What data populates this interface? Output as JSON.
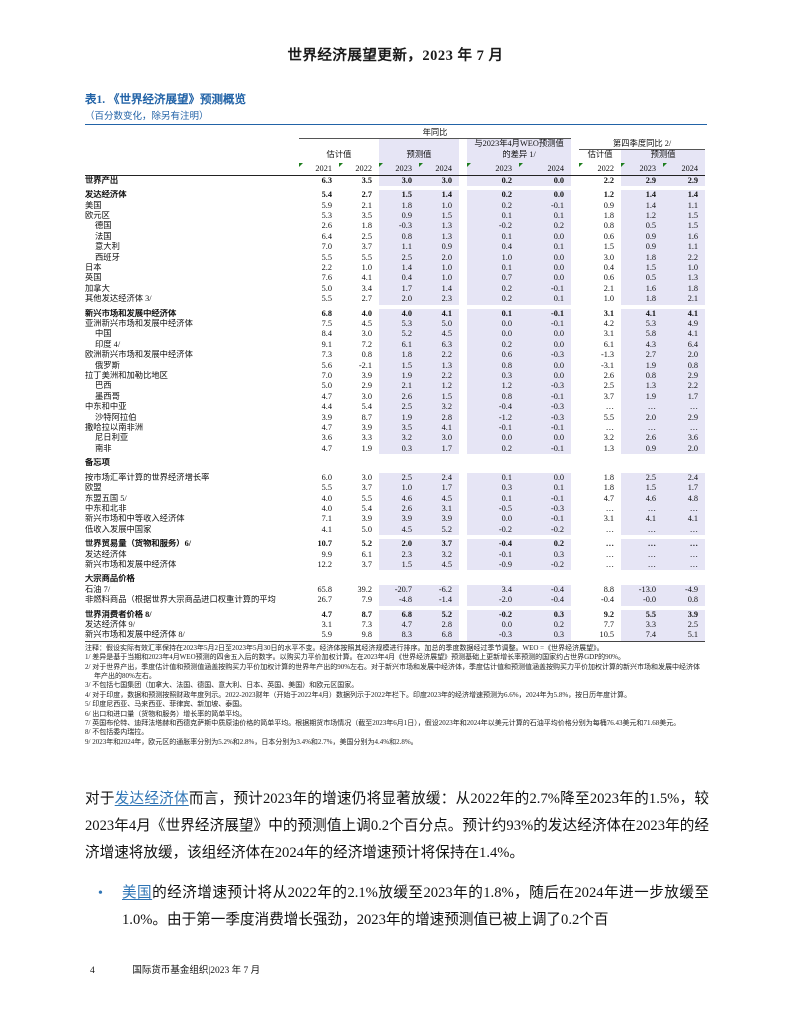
{
  "page": {
    "header_title": "世界经济展望更新，2023 年 7 月",
    "footer_page_number": "4",
    "footer_text": "国际货币基金组织|2023 年 7 月"
  },
  "colors": {
    "accent_blue": "#2263A7",
    "link_blue": "#2E74B5",
    "band_lavender": "#E6E5F5",
    "flag_green": "#1E7E1E"
  },
  "table": {
    "title": "表1. 《世界经济展望》预测概览",
    "subtitle": "（百分数变化，除另有注明）",
    "header": {
      "yoy": "年同比",
      "q4": "第四季度同比 2/",
      "estimate": "估计值",
      "forecast": "预测值",
      "diff_line1": "与2023年4月WEO预测值",
      "diff_line2": "的差异 1/",
      "years_annual": [
        "2021",
        "2022",
        "2023",
        "2024"
      ],
      "years_diff": [
        "2023",
        "2024"
      ],
      "years_q4": [
        "2022",
        "2023",
        "2024"
      ]
    },
    "rows": [
      {
        "label": "世界产出",
        "indent": 0,
        "bold": true,
        "gap_before": false,
        "values": [
          "6.3",
          "3.5",
          "3.0",
          "3.0",
          "0.2",
          "0.0",
          "2.2",
          "2.9",
          "2.9"
        ]
      },
      {
        "label": "发达经济体",
        "indent": 0,
        "bold": true,
        "gap_before": true,
        "values": [
          "5.4",
          "2.7",
          "1.5",
          "1.4",
          "0.2",
          "0.0",
          "1.2",
          "1.4",
          "1.4"
        ]
      },
      {
        "label": "美国",
        "indent": 0,
        "bold": false,
        "gap_before": false,
        "values": [
          "5.9",
          "2.1",
          "1.8",
          "1.0",
          "0.2",
          "-0.1",
          "0.9",
          "1.4",
          "1.1"
        ]
      },
      {
        "label": "欧元区",
        "indent": 0,
        "bold": false,
        "gap_before": false,
        "values": [
          "5.3",
          "3.5",
          "0.9",
          "1.5",
          "0.1",
          "0.1",
          "1.8",
          "1.2",
          "1.5"
        ]
      },
      {
        "label": "德国",
        "indent": 1,
        "bold": false,
        "gap_before": false,
        "values": [
          "2.6",
          "1.8",
          "-0.3",
          "1.3",
          "-0.2",
          "0.2",
          "0.8",
          "0.5",
          "1.5"
        ]
      },
      {
        "label": "法国",
        "indent": 1,
        "bold": false,
        "gap_before": false,
        "values": [
          "6.4",
          "2.5",
          "0.8",
          "1.3",
          "0.1",
          "0.0",
          "0.6",
          "0.9",
          "1.6"
        ]
      },
      {
        "label": "意大利",
        "indent": 1,
        "bold": false,
        "gap_before": false,
        "values": [
          "7.0",
          "3.7",
          "1.1",
          "0.9",
          "0.4",
          "0.1",
          "1.5",
          "0.9",
          "1.1"
        ]
      },
      {
        "label": "西班牙",
        "indent": 1,
        "bold": false,
        "gap_before": false,
        "values": [
          "5.5",
          "5.5",
          "2.5",
          "2.0",
          "1.0",
          "0.0",
          "3.0",
          "1.8",
          "2.2"
        ]
      },
      {
        "label": "日本",
        "indent": 0,
        "bold": false,
        "gap_before": false,
        "values": [
          "2.2",
          "1.0",
          "1.4",
          "1.0",
          "0.1",
          "0.0",
          "0.4",
          "1.5",
          "1.0"
        ]
      },
      {
        "label": "英国",
        "indent": 0,
        "bold": false,
        "gap_before": false,
        "values": [
          "7.6",
          "4.1",
          "0.4",
          "1.0",
          "0.7",
          "0.0",
          "0.6",
          "0.5",
          "1.3"
        ]
      },
      {
        "label": "加拿大",
        "indent": 0,
        "bold": false,
        "gap_before": false,
        "values": [
          "5.0",
          "3.4",
          "1.7",
          "1.4",
          "0.2",
          "-0.1",
          "2.1",
          "1.6",
          "1.8"
        ]
      },
      {
        "label": "其他发达经济体 3/",
        "indent": 0,
        "bold": false,
        "gap_before": false,
        "values": [
          "5.5",
          "2.7",
          "2.0",
          "2.3",
          "0.2",
          "0.1",
          "1.0",
          "1.8",
          "2.1"
        ]
      },
      {
        "label": "新兴市场和发展中经济体",
        "indent": 0,
        "bold": true,
        "gap_before": true,
        "values": [
          "6.8",
          "4.0",
          "4.0",
          "4.1",
          "0.1",
          "-0.1",
          "3.1",
          "4.1",
          "4.1"
        ]
      },
      {
        "label": "亚洲新兴市场和发展中经济体",
        "indent": 0,
        "bold": false,
        "gap_before": false,
        "values": [
          "7.5",
          "4.5",
          "5.3",
          "5.0",
          "0.0",
          "-0.1",
          "4.2",
          "5.3",
          "4.9"
        ]
      },
      {
        "label": "中国",
        "indent": 1,
        "bold": false,
        "gap_before": false,
        "values": [
          "8.4",
          "3.0",
          "5.2",
          "4.5",
          "0.0",
          "0.0",
          "3.1",
          "5.8",
          "4.1"
        ]
      },
      {
        "label": "印度 4/",
        "indent": 1,
        "bold": false,
        "gap_before": false,
        "values": [
          "9.1",
          "7.2",
          "6.1",
          "6.3",
          "0.2",
          "0.0",
          "6.1",
          "4.3",
          "6.4"
        ]
      },
      {
        "label": "欧洲新兴市场和发展中经济体",
        "indent": 0,
        "bold": false,
        "gap_before": false,
        "values": [
          "7.3",
          "0.8",
          "1.8",
          "2.2",
          "0.6",
          "-0.3",
          "-1.3",
          "2.7",
          "2.0"
        ]
      },
      {
        "label": "俄罗斯",
        "indent": 1,
        "bold": false,
        "gap_before": false,
        "values": [
          "5.6",
          "-2.1",
          "1.5",
          "1.3",
          "0.8",
          "0.0",
          "-3.1",
          "1.9",
          "0.8"
        ]
      },
      {
        "label": "拉丁美洲和加勒比地区",
        "indent": 0,
        "bold": false,
        "gap_before": false,
        "values": [
          "7.0",
          "3.9",
          "1.9",
          "2.2",
          "0.3",
          "0.0",
          "2.6",
          "0.8",
          "2.9"
        ]
      },
      {
        "label": "巴西",
        "indent": 1,
        "bold": false,
        "gap_before": false,
        "values": [
          "5.0",
          "2.9",
          "2.1",
          "1.2",
          "1.2",
          "-0.3",
          "2.5",
          "1.3",
          "2.2"
        ]
      },
      {
        "label": "墨西哥",
        "indent": 1,
        "bold": false,
        "gap_before": false,
        "values": [
          "4.7",
          "3.0",
          "2.6",
          "1.5",
          "0.8",
          "-0.1",
          "3.7",
          "1.9",
          "1.7"
        ]
      },
      {
        "label": "中东和中亚",
        "indent": 0,
        "bold": false,
        "gap_before": false,
        "values": [
          "4.4",
          "5.4",
          "2.5",
          "3.2",
          "-0.4",
          "-0.3",
          "…",
          "…",
          "…"
        ]
      },
      {
        "label": "沙特阿拉伯",
        "indent": 1,
        "bold": false,
        "gap_before": false,
        "values": [
          "3.9",
          "8.7",
          "1.9",
          "2.8",
          "-1.2",
          "-0.3",
          "5.5",
          "2.0",
          "2.9"
        ]
      },
      {
        "label": "撒哈拉以南非洲",
        "indent": 0,
        "bold": false,
        "gap_before": false,
        "values": [
          "4.7",
          "3.9",
          "3.5",
          "4.1",
          "-0.1",
          "-0.1",
          "…",
          "…",
          "…"
        ]
      },
      {
        "label": "尼日利亚",
        "indent": 1,
        "bold": false,
        "gap_before": false,
        "values": [
          "3.6",
          "3.3",
          "3.2",
          "3.0",
          "0.0",
          "0.0",
          "3.2",
          "2.6",
          "3.6"
        ]
      },
      {
        "label": "南非",
        "indent": 1,
        "bold": false,
        "gap_before": false,
        "values": [
          "4.7",
          "1.9",
          "0.3",
          "1.7",
          "0.2",
          "-0.1",
          "1.3",
          "0.9",
          "2.0"
        ]
      },
      {
        "label": "备忘项",
        "indent": 0,
        "bold": true,
        "gap_before": true,
        "header_only": true,
        "values": []
      },
      {
        "label": "按市场汇率计算的世界经济增长率",
        "indent": 0,
        "bold": false,
        "gap_before": true,
        "values": [
          "6.0",
          "3.0",
          "2.5",
          "2.4",
          "0.1",
          "0.0",
          "1.8",
          "2.5",
          "2.4"
        ]
      },
      {
        "label": "欧盟",
        "indent": 0,
        "bold": false,
        "gap_before": false,
        "values": [
          "5.5",
          "3.7",
          "1.0",
          "1.7",
          "0.3",
          "0.1",
          "1.8",
          "1.5",
          "1.7"
        ]
      },
      {
        "label": "东盟五国 5/",
        "indent": 0,
        "bold": false,
        "gap_before": false,
        "values": [
          "4.0",
          "5.5",
          "4.6",
          "4.5",
          "0.1",
          "-0.1",
          "4.7",
          "4.6",
          "4.8"
        ]
      },
      {
        "label": "中东和北非",
        "indent": 0,
        "bold": false,
        "gap_before": false,
        "values": [
          "4.0",
          "5.4",
          "2.6",
          "3.1",
          "-0.5",
          "-0.3",
          "…",
          "…",
          "…"
        ]
      },
      {
        "label": "新兴市场和中等收入经济体",
        "indent": 0,
        "bold": false,
        "gap_before": false,
        "values": [
          "7.1",
          "3.9",
          "3.9",
          "3.9",
          "0.0",
          "-0.1",
          "3.1",
          "4.1",
          "4.1"
        ]
      },
      {
        "label": "低收入发展中国家",
        "indent": 0,
        "bold": false,
        "gap_before": false,
        "values": [
          "4.1",
          "5.0",
          "4.5",
          "5.2",
          "-0.2",
          "-0.2",
          "…",
          "…",
          "…"
        ]
      },
      {
        "label": "世界贸易量（货物和服务）6/",
        "indent": 0,
        "bold": true,
        "gap_before": true,
        "values": [
          "10.7",
          "5.2",
          "2.0",
          "3.7",
          "-0.4",
          "0.2",
          "…",
          "…",
          "…"
        ]
      },
      {
        "label": "发达经济体",
        "indent": 0,
        "bold": false,
        "gap_before": false,
        "values": [
          "9.9",
          "6.1",
          "2.3",
          "3.2",
          "-0.1",
          "0.3",
          "…",
          "…",
          "…"
        ]
      },
      {
        "label": "新兴市场和发展中经济体",
        "indent": 0,
        "bold": false,
        "gap_before": false,
        "values": [
          "12.2",
          "3.7",
          "1.5",
          "4.5",
          "-0.9",
          "-0.2",
          "…",
          "…",
          "…"
        ]
      },
      {
        "label": "大宗商品价格",
        "indent": 0,
        "bold": true,
        "gap_before": true,
        "header_only": true,
        "values": []
      },
      {
        "label": "石油 7/",
        "indent": 0,
        "bold": false,
        "gap_before": false,
        "values": [
          "65.8",
          "39.2",
          "-20.7",
          "-6.2",
          "3.4",
          "-0.4",
          "8.8",
          "-13.0",
          "-4.9"
        ]
      },
      {
        "label": "非燃料商品（根据世界大宗商品进口权重计算的平均",
        "indent": 0,
        "bold": false,
        "gap_before": false,
        "values": [
          "26.7",
          "7.9",
          "-4.8",
          "-1.4",
          "-2.0",
          "-0.4",
          "-0.4",
          "-0.0",
          "0.8"
        ]
      },
      {
        "label": "世界消费者价格 8/",
        "indent": 0,
        "bold": true,
        "gap_before": true,
        "values": [
          "4.7",
          "8.7",
          "6.8",
          "5.2",
          "-0.2",
          "0.3",
          "9.2",
          "5.5",
          "3.9"
        ]
      },
      {
        "label": "发达经济体 9/",
        "indent": 0,
        "bold": false,
        "gap_before": false,
        "values": [
          "3.1",
          "7.3",
          "4.7",
          "2.8",
          "0.0",
          "0.2",
          "7.7",
          "3.3",
          "2.5"
        ]
      },
      {
        "label": "新兴市场和发展中经济体 8/",
        "indent": 0,
        "bold": false,
        "gap_before": false,
        "values": [
          "5.9",
          "9.8",
          "8.3",
          "6.8",
          "-0.3",
          "0.3",
          "10.5",
          "7.4",
          "5.1"
        ]
      }
    ],
    "notes": [
      "注释：假设实际有效汇率保持在2023年5月2日至2023年5月30日的水平不变。经济体按照其经济规模进行排序。加总的季度数据经过季节调整。WEO =《世界经济展望》。",
      "1/ 差异是基于当期和2023年4月WEO预测的四舍五入后的数字。以购买力平价加权计算。在2023年4月《世界经济展望》预测基础上更新增长率预测的国家约占世界GDP的90%。",
      "2/ 对于世界产出，季度估计值和预测值涵盖按购买力平价加权计算的世界年产出的90%左右。对于新兴市场和发展中经济体，季度估计值和预测值涵盖按购买力平价加权计算的新兴市场和发展中经济体年产出的80%左右。",
      "3/ 不包括七国集团（加拿大、法国、德国、意大利、日本、英国、美国）和欧元区国家。",
      "4/ 对于印度，数据和预测按照财政年度列示。2022-2023财年（开始于2022年4月）数据列示于2022年栏下。印度2023年的经济增速预测为6.6%，2024年为5.8%，按日历年度计算。",
      "5/ 印度尼西亚、马来西亚、菲律宾、新加坡、泰国。",
      "6/ 出口和进口量（货物和服务）增长率的简单平均。",
      "7/ 英国布伦特、迪拜法塔赫和西德克萨斯中质原油价格的简单平均。根据期货市场情况（截至2023年6月1日），假设2023年和2024年以美元计算的石油平均价格分别为每桶76.43美元和71.68美元。",
      "8/ 不包括委内瑞拉。",
      "9/ 2023年和2024年，欧元区的通胀率分别为5.2%和2.8%，日本分别为3.4%和2.7%，美国分别为4.4%和2.8%。"
    ]
  },
  "body": {
    "para1": {
      "prefix": "对于",
      "link": "发达经济体",
      "rest": "而言，预计2023年的增速仍将显著放缓：从2022年的2.7%降至2023年的1.5%，较2023年4月《世界经济展望》中的预测值上调0.2个百分点。预计约93%的发达经济体在2023年的经济增速将放缓，该组经济体在2024年的经济增速预计将保持在1.4%。"
    },
    "bullet1": {
      "marker": "•",
      "link": "美国",
      "rest": "的经济增速预计将从2022年的2.1%放缓至2023年的1.8%，随后在2024年进一步放缓至1.0%。由于第一季度消费增长强劲，2023年的增速预测值已被上调了0.2个百"
    }
  }
}
